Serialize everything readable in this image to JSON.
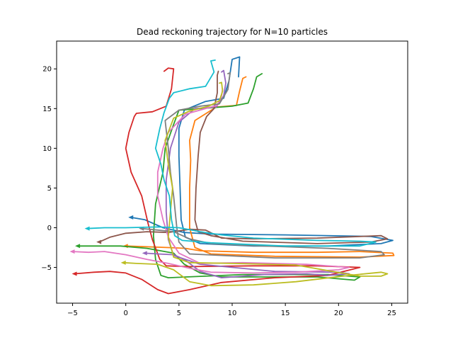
{
  "chart_data": {
    "type": "line",
    "title": "Dead reckoning trajectory for N=10 particles",
    "xlabel": "",
    "ylabel": "",
    "xlim": [
      -6.5,
      26.5
    ],
    "ylim": [
      -9.5,
      23.5
    ],
    "xticks": [
      -5,
      0,
      5,
      10,
      15,
      20,
      25
    ],
    "yticks": [
      -5,
      0,
      5,
      10,
      15,
      20
    ],
    "grid": false,
    "legend": "none",
    "series": [
      {
        "color": "#1f77b4",
        "points": [
          [
            0.5,
            1.3
          ],
          [
            1.8,
            1.0
          ],
          [
            3.5,
            0.0
          ],
          [
            5.5,
            -0.6
          ],
          [
            8,
            -0.8
          ],
          [
            15,
            -0.9
          ],
          [
            23,
            -1.1
          ],
          [
            25.1,
            -1.6
          ],
          [
            24,
            -2.0
          ],
          [
            19,
            -2.3
          ],
          [
            12,
            -2.3
          ],
          [
            7,
            -2.0
          ],
          [
            5.6,
            -1.2
          ],
          [
            5.2,
            1.0
          ],
          [
            5.1,
            5.0
          ],
          [
            5.0,
            9.0
          ],
          [
            5.0,
            12.5
          ],
          [
            5.5,
            14.8
          ],
          [
            7.5,
            15.9
          ],
          [
            9.2,
            16.3
          ],
          [
            9.7,
            18.5
          ],
          [
            10,
            21.2
          ],
          [
            10.7,
            21.5
          ],
          [
            10.6,
            19
          ]
        ]
      },
      {
        "color": "#ff7f0e",
        "points": [
          [
            0.0,
            -2.3
          ],
          [
            2,
            -2.4
          ],
          [
            4,
            -2.5
          ],
          [
            5.6,
            -2.6
          ],
          [
            7,
            -2.9
          ],
          [
            12,
            -3.1
          ],
          [
            18,
            -3.1
          ],
          [
            22,
            -3.0
          ],
          [
            25.1,
            -3.2
          ],
          [
            25.2,
            -3.5
          ],
          [
            22,
            -3.7
          ],
          [
            14,
            -3.6
          ],
          [
            8,
            -3.3
          ],
          [
            6.5,
            -2.5
          ],
          [
            6.0,
            0
          ],
          [
            6.0,
            5
          ],
          [
            6.1,
            8.5
          ],
          [
            6.0,
            11
          ],
          [
            6.5,
            13.5
          ],
          [
            8.5,
            15.2
          ],
          [
            10.4,
            15.4
          ],
          [
            10.7,
            17.2
          ],
          [
            11.0,
            18.8
          ],
          [
            11.3,
            19.0
          ]
        ]
      },
      {
        "color": "#2ca02c",
        "points": [
          [
            -4.5,
            -2.3
          ],
          [
            -3,
            -2.3
          ],
          [
            -0.5,
            -2.3
          ],
          [
            2,
            -2.6
          ],
          [
            4.5,
            -3.2
          ],
          [
            5.5,
            -4.6
          ],
          [
            7,
            -5.7
          ],
          [
            9,
            -6.2
          ],
          [
            12,
            -6.2
          ],
          [
            18,
            -6.2
          ],
          [
            21.5,
            -6.6
          ],
          [
            22,
            -6.2
          ],
          [
            19,
            -5.9
          ],
          [
            11,
            -5.9
          ],
          [
            4,
            -6.3
          ],
          [
            3.3,
            -6.0
          ],
          [
            2.8,
            -4.0
          ],
          [
            2.6,
            -1.0
          ],
          [
            2.8,
            3
          ],
          [
            3.5,
            7
          ],
          [
            3.7,
            10
          ],
          [
            4.5,
            13
          ],
          [
            5,
            14.8
          ],
          [
            7,
            15.0
          ],
          [
            10,
            15.3
          ],
          [
            11.5,
            15.7
          ],
          [
            12,
            17.5
          ],
          [
            12.3,
            19
          ],
          [
            12.8,
            19.4
          ]
        ]
      },
      {
        "color": "#d62728",
        "points": [
          [
            -4.8,
            -5.8
          ],
          [
            -3,
            -5.6
          ],
          [
            -1.5,
            -5.5
          ],
          [
            0,
            -5.7
          ],
          [
            1.5,
            -6.5
          ],
          [
            3,
            -7.8
          ],
          [
            4,
            -8.3
          ],
          [
            6,
            -7.8
          ],
          [
            9,
            -6.9
          ],
          [
            14,
            -6.3
          ],
          [
            19,
            -6.0
          ],
          [
            22,
            -5.0
          ],
          [
            18,
            -4.8
          ],
          [
            12,
            -4.8
          ],
          [
            6,
            -4.9
          ],
          [
            3.8,
            -4.8
          ],
          [
            3.2,
            -4.0
          ],
          [
            2.5,
            -1.5
          ],
          [
            2.1,
            0.5
          ],
          [
            1.5,
            4
          ],
          [
            0.5,
            7
          ],
          [
            0,
            10
          ],
          [
            0.3,
            12
          ],
          [
            0.8,
            14
          ],
          [
            1,
            14.4
          ],
          [
            2.5,
            14.6
          ],
          [
            3.8,
            15.3
          ],
          [
            4.3,
            17.5
          ],
          [
            4.5,
            20.0
          ],
          [
            4.0,
            20.1
          ],
          [
            3.6,
            19.7
          ]
        ]
      },
      {
        "color": "#9467bd",
        "points": [
          [
            1.8,
            -3.2
          ],
          [
            3,
            -3.3
          ],
          [
            4.5,
            -3.4
          ],
          [
            5.5,
            -4.0
          ],
          [
            7,
            -5.5
          ],
          [
            9,
            -6.3
          ],
          [
            13,
            -5.9
          ],
          [
            17,
            -5.8
          ],
          [
            19,
            -6.0
          ],
          [
            21,
            -5.8
          ],
          [
            20,
            -5.6
          ],
          [
            14,
            -5.5
          ],
          [
            7,
            -4.6
          ],
          [
            4.5,
            -3.5
          ],
          [
            4.0,
            -1.5
          ],
          [
            3.8,
            2
          ],
          [
            3.8,
            6
          ],
          [
            4.2,
            10
          ],
          [
            5,
            13.3
          ],
          [
            6.5,
            15
          ],
          [
            8.5,
            15.2
          ],
          [
            9.2,
            16.6
          ],
          [
            9.4,
            18.2
          ],
          [
            9.2,
            19.8
          ],
          [
            9.0,
            19.6
          ]
        ]
      },
      {
        "color": "#8c564b",
        "points": [
          [
            -2.5,
            -1.8
          ],
          [
            -1.5,
            -1.2
          ],
          [
            0,
            -0.7
          ],
          [
            2,
            -0.5
          ],
          [
            4,
            -0.6
          ],
          [
            6,
            -0.2
          ],
          [
            7.5,
            -0.3
          ],
          [
            9,
            -1.3
          ],
          [
            12,
            -1.4
          ],
          [
            18,
            -1.3
          ],
          [
            24,
            -1.0
          ],
          [
            24.6,
            -1.4
          ],
          [
            23,
            -1.8
          ],
          [
            18,
            -2.0
          ],
          [
            11,
            -1.7
          ],
          [
            8,
            -1.0
          ],
          [
            6.8,
            -0.5
          ],
          [
            6.5,
            1
          ],
          [
            6.6,
            5
          ],
          [
            6.8,
            9
          ],
          [
            7,
            12
          ],
          [
            7.6,
            14.0
          ],
          [
            8.3,
            15.0
          ],
          [
            8.6,
            17
          ],
          [
            8.6,
            19.2
          ],
          [
            8.7,
            19.7
          ]
        ]
      },
      {
        "color": "#e377c2",
        "points": [
          [
            -5,
            -3.0
          ],
          [
            -3.5,
            -3.1
          ],
          [
            -2,
            -3.0
          ],
          [
            0,
            -3.4
          ],
          [
            2,
            -4.0
          ],
          [
            4,
            -4.5
          ],
          [
            6,
            -5.1
          ],
          [
            8,
            -5.6
          ],
          [
            12,
            -5.7
          ],
          [
            16,
            -5.6
          ],
          [
            20,
            -5.3
          ],
          [
            21,
            -5.0
          ],
          [
            17,
            -4.6
          ],
          [
            11,
            -4.4
          ],
          [
            7,
            -4.5
          ],
          [
            5.0,
            -3.2
          ],
          [
            4.0,
            -1.2
          ],
          [
            3.5,
            1
          ],
          [
            3.0,
            4
          ],
          [
            3.0,
            7
          ],
          [
            3.5,
            10
          ],
          [
            4.0,
            12
          ],
          [
            5.6,
            14.3
          ],
          [
            7.5,
            15.0
          ],
          [
            8.6,
            15.4
          ],
          [
            9.0,
            16.6
          ],
          [
            9.1,
            17.5
          ]
        ]
      },
      {
        "color": "#7f7f7f",
        "points": [
          [
            1.5,
            -0.1
          ],
          [
            3,
            -0.3
          ],
          [
            4.5,
            -0.5
          ],
          [
            6,
            -1.4
          ],
          [
            8,
            -2.0
          ],
          [
            11,
            -2.2
          ],
          [
            15,
            -2.4
          ],
          [
            19,
            -2.6
          ],
          [
            24,
            -3.0
          ],
          [
            24.3,
            -3.4
          ],
          [
            22,
            -3.8
          ],
          [
            14,
            -3.8
          ],
          [
            6,
            -3.3
          ],
          [
            5.0,
            -1.8
          ],
          [
            4.8,
            0
          ],
          [
            4.5,
            4
          ],
          [
            4.2,
            7
          ],
          [
            4,
            10
          ],
          [
            3.7,
            13.5
          ],
          [
            5,
            14.8
          ],
          [
            7,
            15.3
          ],
          [
            8.8,
            15.6
          ],
          [
            9.6,
            17.4
          ],
          [
            9.8,
            19.5
          ],
          [
            9.6,
            19.4
          ]
        ]
      },
      {
        "color": "#bcbd22",
        "points": [
          [
            -0.2,
            -4.4
          ],
          [
            1,
            -4.5
          ],
          [
            3,
            -4.6
          ],
          [
            4.5,
            -5.3
          ],
          [
            6,
            -6.8
          ],
          [
            8,
            -7.3
          ],
          [
            12,
            -7.2
          ],
          [
            16,
            -6.8
          ],
          [
            21,
            -6.0
          ],
          [
            24,
            -5.6
          ],
          [
            24.6,
            -5.8
          ],
          [
            24.0,
            -6.1
          ],
          [
            22,
            -6.1
          ],
          [
            16,
            -4.7
          ],
          [
            10,
            -4.5
          ],
          [
            6,
            -4.4
          ],
          [
            4.5,
            -3.7
          ],
          [
            4.0,
            -1.2
          ],
          [
            4.2,
            2
          ],
          [
            4.4,
            5
          ],
          [
            4.0,
            8
          ],
          [
            3.7,
            11
          ],
          [
            4.5,
            13.8
          ],
          [
            6.0,
            14.7
          ],
          [
            7.8,
            15.3
          ],
          [
            8.8,
            16.0
          ],
          [
            9.1,
            17.2
          ],
          [
            9.0,
            18.3
          ],
          [
            8.8,
            18.2
          ]
        ]
      },
      {
        "color": "#17becf",
        "points": [
          [
            -3.6,
            -0.1
          ],
          [
            -2,
            0.0
          ],
          [
            0,
            0.0
          ],
          [
            3,
            0.1
          ],
          [
            5,
            0.0
          ],
          [
            7,
            -0.5
          ],
          [
            9,
            -0.9
          ],
          [
            12,
            -1.3
          ],
          [
            18,
            -1.6
          ],
          [
            22,
            -1.7
          ],
          [
            23.5,
            -1.8
          ],
          [
            22,
            -2.3
          ],
          [
            15,
            -2.3
          ],
          [
            8,
            -1.9
          ],
          [
            5.3,
            -1.6
          ],
          [
            4.6,
            -1.0
          ],
          [
            4.3,
            1
          ],
          [
            4.1,
            4
          ],
          [
            3.6,
            6
          ],
          [
            3.3,
            8
          ],
          [
            2.8,
            10
          ],
          [
            3.2,
            12.5
          ],
          [
            3.6,
            14.5
          ],
          [
            4.1,
            16.3
          ],
          [
            4.5,
            17.0
          ],
          [
            6,
            17.5
          ],
          [
            7.5,
            17.8
          ],
          [
            8.3,
            19.6
          ],
          [
            8.0,
            21.0
          ],
          [
            8.4,
            21.1
          ]
        ]
      }
    ]
  }
}
